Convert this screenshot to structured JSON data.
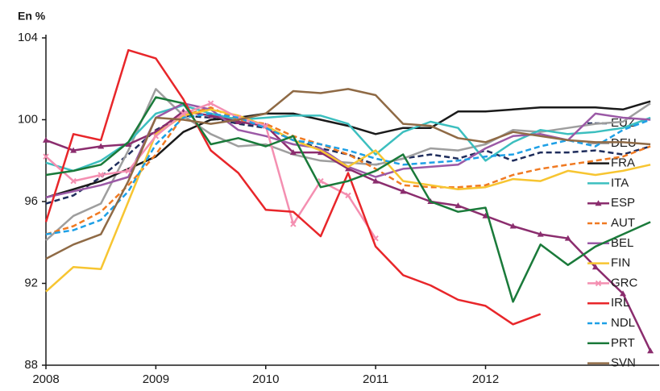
{
  "chart_data": {
    "type": "line",
    "y_label": "En %",
    "x": [
      2008,
      2008.25,
      2008.5,
      2008.75,
      2009,
      2009.25,
      2009.5,
      2009.75,
      2010,
      2010.25,
      2010.5,
      2010.75,
      2011,
      2011.25,
      2011.5,
      2011.75,
      2012,
      2012.25,
      2012.5,
      2012.75,
      2013,
      2013.25,
      2013.5
    ],
    "xlim": [
      2008,
      2013.58
    ],
    "xticks": [
      2008,
      2009,
      2010,
      2011,
      2012
    ],
    "ylim": [
      88,
      104
    ],
    "yticks": [
      88,
      92,
      96,
      100,
      104
    ],
    "series": [
      {
        "name": "EUZ",
        "color": "#1f2d5c",
        "dash": true,
        "values": [
          95.9,
          96.3,
          97.2,
          98.3,
          99.5,
          100.2,
          100.1,
          99.8,
          99.6,
          99.0,
          98.6,
          98.3,
          97.8,
          98.1,
          98.3,
          98.1,
          98.5,
          98.0,
          98.4,
          98.4,
          98.5,
          98.3,
          98.7
        ]
      },
      {
        "name": "DEU",
        "color": "#9e9e9e",
        "values": [
          94.1,
          95.3,
          95.9,
          98.5,
          101.5,
          100.2,
          99.3,
          98.7,
          98.8,
          98.3,
          98.0,
          97.9,
          97.8,
          98.1,
          98.6,
          98.5,
          98.8,
          99.5,
          99.4,
          99.6,
          99.8,
          99.9,
          100.8
        ]
      },
      {
        "name": "FRA",
        "color": "#1a1a1a",
        "values": [
          96.2,
          96.6,
          97.0,
          97.6,
          98.2,
          99.4,
          100.0,
          100.1,
          100.3,
          100.3,
          100.0,
          99.7,
          99.3,
          99.6,
          99.6,
          100.4,
          100.4,
          100.5,
          100.6,
          100.6,
          100.6,
          100.5,
          100.9
        ]
      },
      {
        "name": "ITA",
        "color": "#3cbfbf",
        "values": [
          97.9,
          97.5,
          98.0,
          98.9,
          100.3,
          100.7,
          100.3,
          100.0,
          100.1,
          100.2,
          100.2,
          99.8,
          98.3,
          99.4,
          99.9,
          99.6,
          98.0,
          98.9,
          99.5,
          99.3,
          99.4,
          99.6,
          100.1
        ]
      },
      {
        "name": "ESP",
        "color": "#8b2d6e",
        "marker": "triangle",
        "values": [
          99.0,
          98.5,
          98.7,
          98.8,
          99.4,
          100.4,
          100.2,
          99.9,
          99.7,
          98.4,
          98.4,
          97.6,
          97.0,
          96.5,
          96.0,
          95.8,
          95.3,
          94.8,
          94.4,
          94.2,
          92.8,
          91.5,
          88.7
        ]
      },
      {
        "name": "AUT",
        "color": "#f07a22",
        "dash": true,
        "values": [
          94.4,
          94.8,
          95.5,
          96.8,
          98.3,
          100.2,
          100.6,
          100.0,
          99.8,
          99.2,
          98.8,
          98.3,
          97.6,
          96.8,
          96.7,
          96.7,
          96.8,
          97.3,
          97.6,
          97.8,
          98.0,
          98.2,
          98.7
        ]
      },
      {
        "name": "BEL",
        "color": "#9b59a6",
        "values": [
          96.2,
          96.5,
          96.8,
          97.2,
          100.1,
          100.8,
          100.5,
          99.5,
          99.2,
          98.8,
          98.6,
          97.7,
          97.2,
          97.6,
          97.7,
          97.8,
          98.6,
          99.2,
          99.3,
          99.0,
          100.3,
          100.1,
          100.0
        ]
      },
      {
        "name": "FIN",
        "color": "#f7c531",
        "values": [
          91.6,
          92.8,
          92.7,
          96.0,
          99.3,
          100.2,
          100.5,
          100.2,
          99.7,
          99.0,
          98.5,
          97.7,
          98.5,
          97.0,
          96.8,
          96.6,
          96.7,
          97.1,
          97.0,
          97.5,
          97.3,
          97.5,
          97.8
        ]
      },
      {
        "name": "GRC",
        "color": "#f48fb1",
        "marker": "x",
        "values": [
          98.2,
          97.0,
          97.3,
          97.5,
          99.2,
          100.3,
          100.8,
          100.1,
          99.7,
          94.9,
          97.0,
          96.3,
          94.2,
          null,
          null,
          null,
          null,
          null,
          null,
          null,
          null,
          null,
          null
        ]
      },
      {
        "name": "IRL",
        "color": "#e8262a",
        "values": [
          95.0,
          99.3,
          99.0,
          103.4,
          103.0,
          101.0,
          98.5,
          97.4,
          95.6,
          95.5,
          94.3,
          97.4,
          93.8,
          92.4,
          91.9,
          91.2,
          90.9,
          90.0,
          90.5,
          null,
          null,
          null,
          null
        ]
      },
      {
        "name": "NDL",
        "color": "#1ea0e6",
        "dash": true,
        "values": [
          94.4,
          94.6,
          95.1,
          96.5,
          98.8,
          100.1,
          100.3,
          100.1,
          99.6,
          99.0,
          98.8,
          98.5,
          98.1,
          97.8,
          97.9,
          98.0,
          98.2,
          98.3,
          98.7,
          99.0,
          98.7,
          99.5,
          100.0
        ]
      },
      {
        "name": "PRT",
        "color": "#1a7a3a",
        "values": [
          97.3,
          97.5,
          97.8,
          98.9,
          101.1,
          100.8,
          98.8,
          99.1,
          98.7,
          99.2,
          96.7,
          97.0,
          97.5,
          98.3,
          96.0,
          95.5,
          95.7,
          91.1,
          93.9,
          92.9,
          93.8,
          94.4,
          95.0
        ]
      },
      {
        "name": "SVN",
        "color": "#8f6a45",
        "values": [
          93.2,
          93.9,
          94.4,
          97.0,
          100.1,
          100.0,
          99.8,
          100.0,
          100.3,
          101.4,
          101.3,
          101.5,
          101.2,
          99.8,
          99.7,
          99.1,
          98.9,
          99.4,
          99.2,
          99.0,
          98.9,
          98.9,
          98.8
        ]
      }
    ]
  }
}
